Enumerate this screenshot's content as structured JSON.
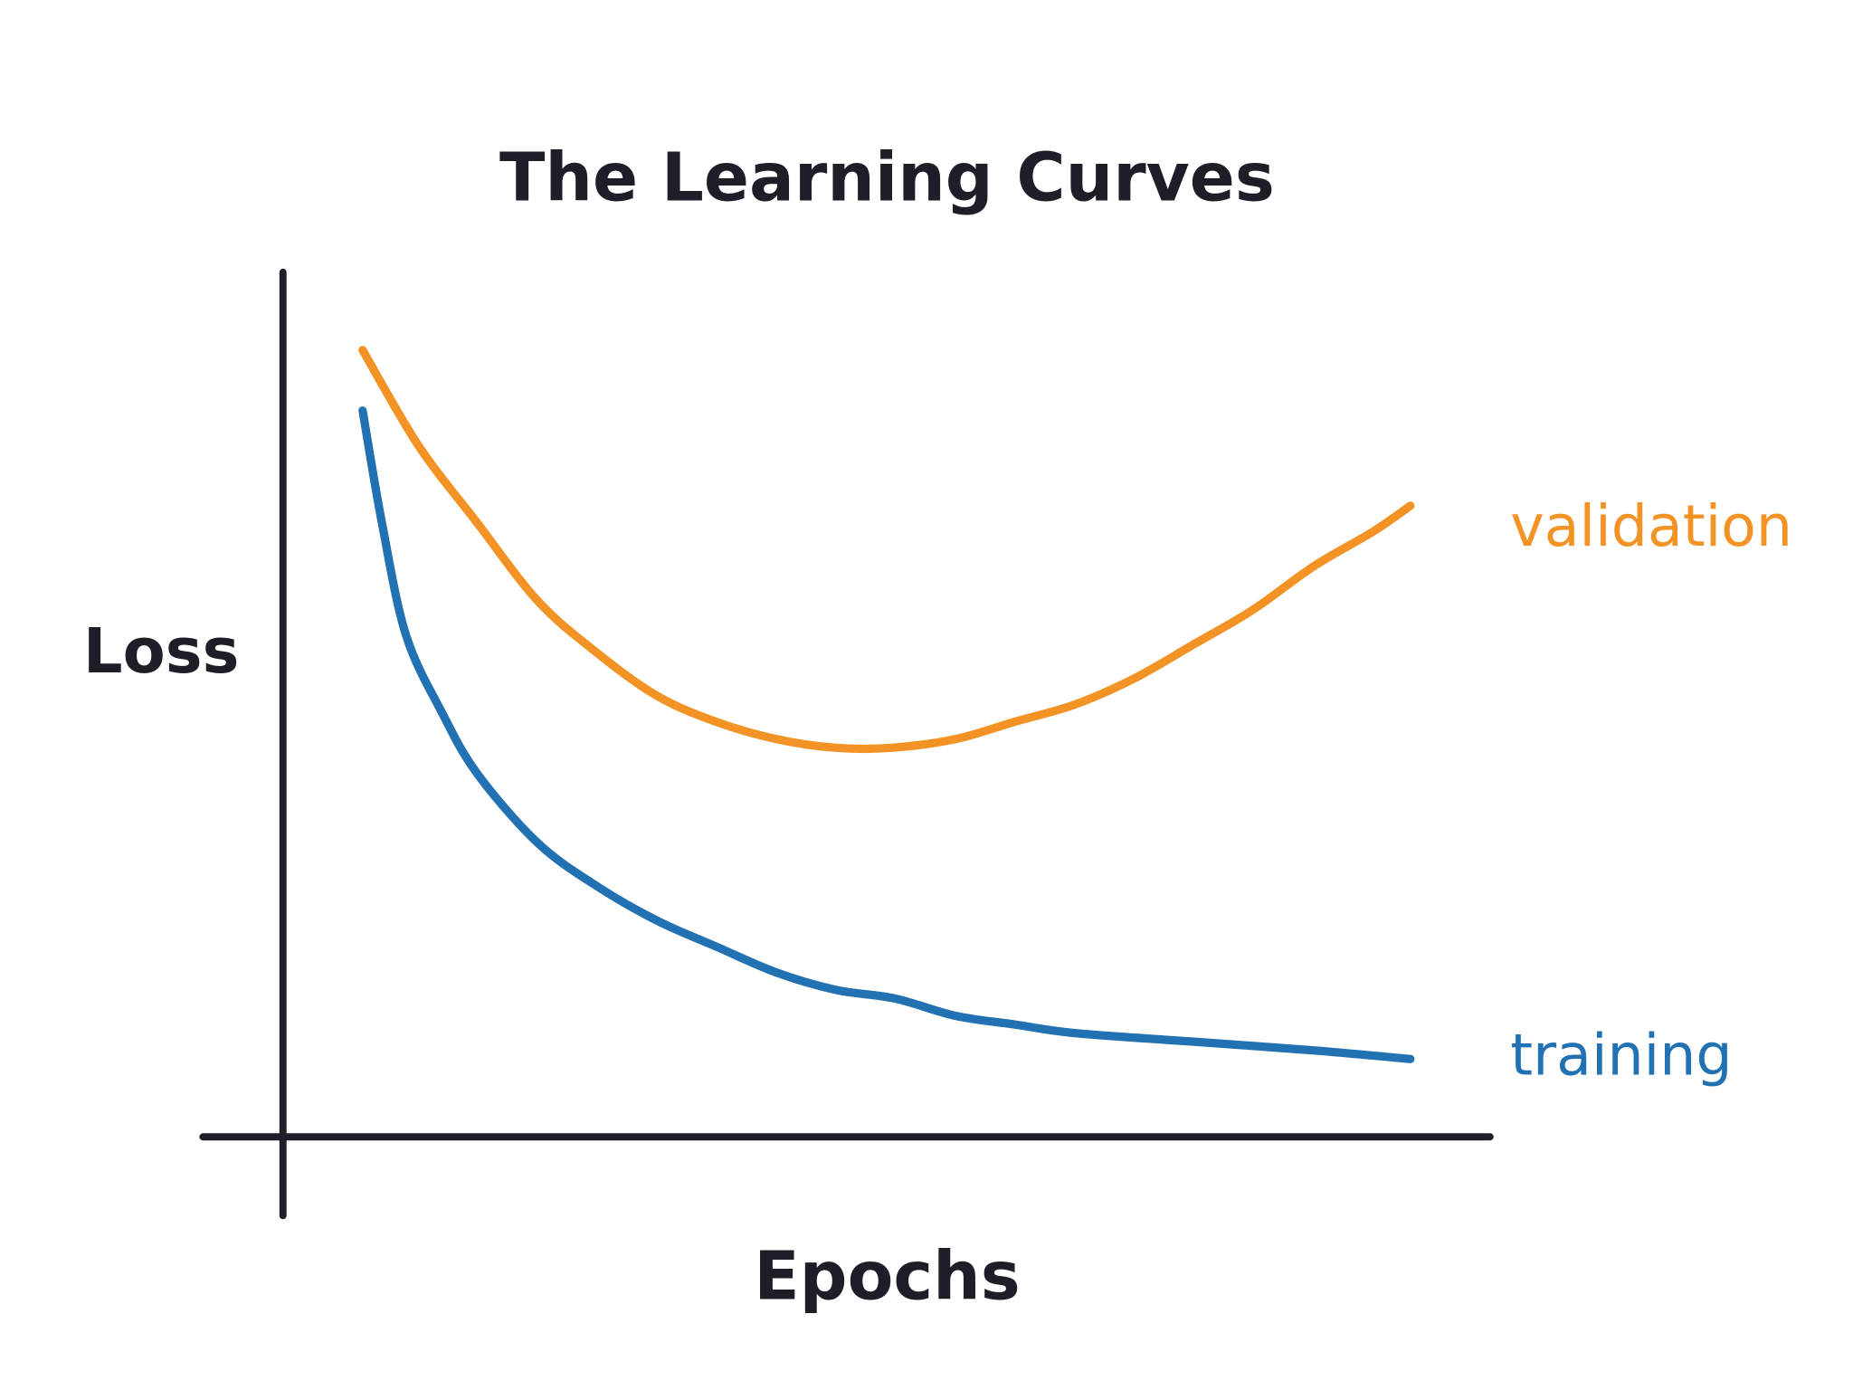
{
  "chart_data": {
    "type": "line",
    "title": "The Learning Curves",
    "xlabel": "Epochs",
    "ylabel": "Loss",
    "xlim": [
      0,
      10
    ],
    "ylim": [
      0,
      1
    ],
    "grid": false,
    "ticks": false,
    "legend": "inline-right",
    "axis_color": "#1e1e28",
    "series": [
      {
        "name": "validation",
        "color": "#f39325",
        "x": [
          0.66,
          1.12,
          1.61,
          2.11,
          2.6,
          3.1,
          3.59,
          4.09,
          4.58,
          5.04,
          5.57,
          6.06,
          6.56,
          7.05,
          7.55,
          8.04,
          8.54,
          9.03,
          9.34
        ],
        "y": [
          0.91,
          0.8,
          0.71,
          0.62,
          0.56,
          0.51,
          0.48,
          0.46,
          0.45,
          0.45,
          0.46,
          0.48,
          0.5,
          0.53,
          0.57,
          0.61,
          0.66,
          0.7,
          0.73
        ]
      },
      {
        "name": "training",
        "color": "#2271b3",
        "x": [
          0.66,
          0.82,
          1.02,
          1.32,
          1.61,
          2.11,
          2.6,
          3.1,
          3.59,
          4.09,
          4.58,
          5.07,
          5.57,
          6.06,
          6.56,
          7.55,
          8.54,
          9.34
        ],
        "y": [
          0.84,
          0.71,
          0.58,
          0.49,
          0.42,
          0.34,
          0.29,
          0.25,
          0.22,
          0.19,
          0.17,
          0.16,
          0.14,
          0.13,
          0.12,
          0.11,
          0.1,
          0.09
        ]
      }
    ]
  }
}
